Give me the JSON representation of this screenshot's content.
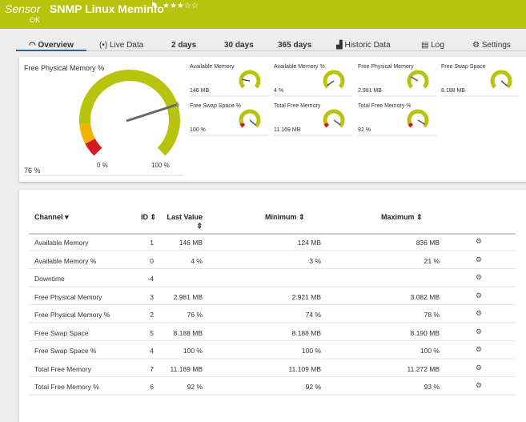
{
  "header": {
    "kind": "Sensor",
    "name": "SNMP Linux Meminfo",
    "status": "OK"
  },
  "tabs": [
    "Overview",
    "Live Data",
    "2  days",
    "30 days",
    "365 days",
    "Historic Data",
    "Log",
    "Settings"
  ],
  "main_gauge": {
    "title": "Free Physical Memory %",
    "value": "76 %",
    "min": "0 %",
    "max": "100 %",
    "scale_mark": "5"
  },
  "gauges": [
    {
      "title": "Available Memory",
      "value": "146 MB"
    },
    {
      "title": "Available Memory %",
      "value": "4 %"
    },
    {
      "title": "Free Physical Memory",
      "value": "2.981 MB"
    },
    {
      "title": "Free Swap Space",
      "value": "8.188 MB"
    },
    {
      "title": "Free Swap Space %",
      "value": "100 %"
    },
    {
      "title": "Total Free Memory",
      "value": "11.169 MB"
    },
    {
      "title": "Total Free Memory %",
      "value": "92 %"
    }
  ],
  "table": {
    "columns": [
      "Channel",
      "ID",
      "Last Value",
      "Minimum",
      "Maximum"
    ],
    "rows": [
      {
        "channel": "Available Memory",
        "id": "1",
        "last": "146 MB",
        "min": "124 MB",
        "max": "836 MB"
      },
      {
        "channel": "Available Memory %",
        "id": "0",
        "last": "4 %",
        "min": "3 %",
        "max": "21 %"
      },
      {
        "channel": "Downtime",
        "id": "-4"
      },
      {
        "channel": "Free Physical Memory",
        "id": "3",
        "last": "2.981 MB",
        "min": "2.921 MB",
        "max": "3.082 MB"
      },
      {
        "channel": "Free Physical Memory %",
        "id": "2",
        "last": "76 %",
        "min": "74 %",
        "max": "78 %"
      },
      {
        "channel": "Free Swap Space",
        "id": "5",
        "last": "8.188 MB",
        "min": "8.188 MB",
        "max": "8.190 MB"
      },
      {
        "channel": "Free Swap Space %",
        "id": "4",
        "last": "100 %",
        "min": "100 %",
        "max": "100 %"
      },
      {
        "channel": "Total Free Memory",
        "id": "7",
        "last": "11.169 MB",
        "min": "11.109 MB",
        "max": "11.272 MB"
      },
      {
        "channel": "Total Free Memory %",
        "id": "6",
        "last": "92 %",
        "min": "92 %",
        "max": "93 %"
      }
    ]
  }
}
